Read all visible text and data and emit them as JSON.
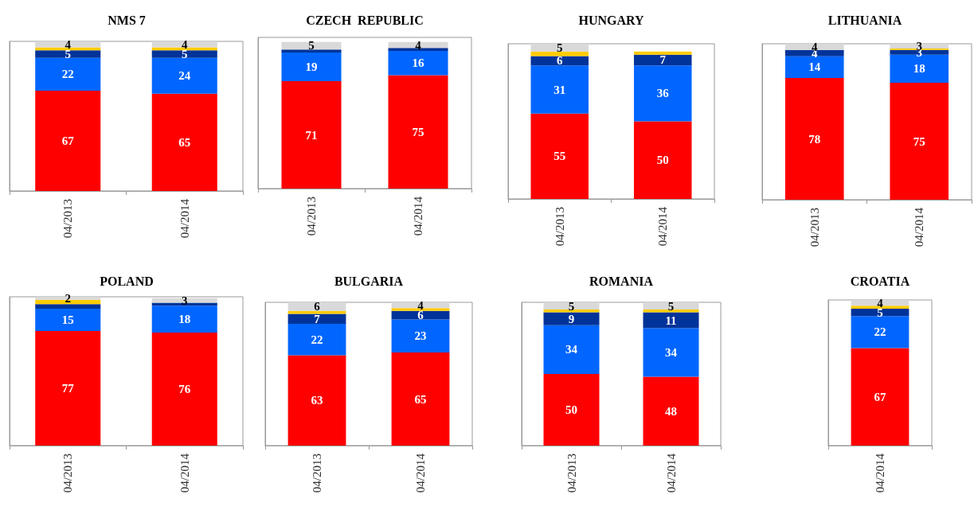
{
  "chart_data": [
    {
      "type": "bar",
      "stacked": true,
      "title": "NMS 7",
      "categories": [
        "04/2013",
        "04/2014"
      ],
      "ylim": [
        0,
        100
      ],
      "tick_labels": "x",
      "series": [
        {
          "color": "#ff0000",
          "values": [
            67,
            65
          ],
          "value_labels": [
            "67",
            "65"
          ]
        },
        {
          "color": "#0066ff",
          "values": [
            22,
            24
          ],
          "value_labels": [
            "22",
            "24"
          ]
        },
        {
          "color": "#003399",
          "values": [
            5,
            5
          ],
          "value_labels": [
            "5",
            "5"
          ]
        },
        {
          "color": "#ffcc00",
          "values": [
            2,
            2
          ],
          "value_labels": [
            null,
            null
          ]
        },
        {
          "color": "#d9d9d9",
          "values": [
            4,
            4
          ],
          "value_labels": [
            "4",
            "4"
          ]
        }
      ]
    },
    {
      "type": "bar",
      "stacked": true,
      "title": "CZECH  REPUBLIC",
      "categories": [
        "04/2013",
        "04/2014"
      ],
      "ylim": [
        0,
        100
      ],
      "tick_labels": "x",
      "series": [
        {
          "color": "#ff0000",
          "values": [
            71,
            75
          ],
          "value_labels": [
            "71",
            "75"
          ]
        },
        {
          "color": "#0066ff",
          "values": [
            19,
            16
          ],
          "value_labels": [
            "19",
            "16"
          ]
        },
        {
          "color": "#003399",
          "values": [
            2,
            2
          ],
          "value_labels": [
            null,
            null
          ]
        },
        {
          "color": "#ffcc00",
          "values": [
            null,
            null
          ],
          "value_labels": [
            null,
            null
          ]
        },
        {
          "color": "#d9d9d9",
          "values": [
            5,
            4
          ],
          "value_labels": [
            "5",
            "4"
          ]
        }
      ]
    },
    {
      "type": "bar",
      "stacked": true,
      "title": "HUNGARY",
      "categories": [
        "04/2013",
        "04/2014"
      ],
      "ylim": [
        0,
        100
      ],
      "tick_labels": "x",
      "series": [
        {
          "color": "#ff0000",
          "values": [
            55,
            50
          ],
          "value_labels": [
            "55",
            "50"
          ]
        },
        {
          "color": "#0066ff",
          "values": [
            31,
            36
          ],
          "value_labels": [
            "31",
            "36"
          ]
        },
        {
          "color": "#003399",
          "values": [
            6,
            7
          ],
          "value_labels": [
            "6",
            "7"
          ]
        },
        {
          "color": "#ffcc00",
          "values": [
            3,
            2
          ],
          "value_labels": [
            null,
            null
          ]
        },
        {
          "color": "#d9d9d9",
          "values": [
            5,
            null
          ],
          "value_labels": [
            "5",
            null
          ]
        }
      ]
    },
    {
      "type": "bar",
      "stacked": true,
      "title": "LITHUANIA",
      "categories": [
        "04/2013",
        "04/2014"
      ],
      "ylim": [
        0,
        100
      ],
      "tick_labels": "x",
      "series": [
        {
          "color": "#ff0000",
          "values": [
            78,
            75
          ],
          "value_labels": [
            "78",
            "75"
          ]
        },
        {
          "color": "#0066ff",
          "values": [
            14,
            18
          ],
          "value_labels": [
            "14",
            "18"
          ]
        },
        {
          "color": "#003399",
          "values": [
            4,
            3
          ],
          "value_labels": [
            "4",
            "3"
          ]
        },
        {
          "color": "#ffcc00",
          "values": [
            null,
            1
          ],
          "value_labels": [
            null,
            null
          ]
        },
        {
          "color": "#d9d9d9",
          "values": [
            4,
            3
          ],
          "value_labels": [
            "4",
            "3"
          ]
        }
      ]
    },
    {
      "type": "bar",
      "stacked": true,
      "title": "POLAND",
      "categories": [
        "04/2013",
        "04/2014"
      ],
      "ylim": [
        0,
        100
      ],
      "tick_labels": "x",
      "series": [
        {
          "color": "#ff0000",
          "values": [
            77,
            76
          ],
          "value_labels": [
            "77",
            "76"
          ]
        },
        {
          "color": "#0066ff",
          "values": [
            15,
            18
          ],
          "value_labels": [
            "15",
            "18"
          ]
        },
        {
          "color": "#003399",
          "values": [
            3,
            2
          ],
          "value_labels": [
            null,
            null
          ]
        },
        {
          "color": "#ffcc00",
          "values": [
            3,
            null
          ],
          "value_labels": [
            null,
            null
          ]
        },
        {
          "color": "#d9d9d9",
          "values": [
            2,
            3
          ],
          "value_labels": [
            "2",
            "3"
          ]
        }
      ]
    },
    {
      "type": "bar",
      "stacked": true,
      "title": "BULGARIA",
      "categories": [
        "04/2013",
        "04/2014"
      ],
      "ylim": [
        0,
        100
      ],
      "tick_labels": "x",
      "series": [
        {
          "color": "#ff0000",
          "values": [
            63,
            65
          ],
          "value_labels": [
            "63",
            "65"
          ]
        },
        {
          "color": "#0066ff",
          "values": [
            22,
            23
          ],
          "value_labels": [
            "22",
            "23"
          ]
        },
        {
          "color": "#003399",
          "values": [
            7,
            6
          ],
          "value_labels": [
            "7",
            "6"
          ]
        },
        {
          "color": "#ffcc00",
          "values": [
            2,
            2
          ],
          "value_labels": [
            null,
            null
          ]
        },
        {
          "color": "#d9d9d9",
          "values": [
            6,
            4
          ],
          "value_labels": [
            "6",
            "4"
          ]
        }
      ]
    },
    {
      "type": "bar",
      "stacked": true,
      "title": "ROMANIA",
      "categories": [
        "04/2013",
        "04/2014"
      ],
      "ylim": [
        0,
        100
      ],
      "tick_labels": "x",
      "series": [
        {
          "color": "#ff0000",
          "values": [
            50,
            48
          ],
          "value_labels": [
            "50",
            "48"
          ]
        },
        {
          "color": "#0066ff",
          "values": [
            34,
            34
          ],
          "value_labels": [
            "34",
            "34"
          ]
        },
        {
          "color": "#003399",
          "values": [
            9,
            11
          ],
          "value_labels": [
            "9",
            "11"
          ]
        },
        {
          "color": "#ffcc00",
          "values": [
            2,
            2
          ],
          "value_labels": [
            null,
            null
          ]
        },
        {
          "color": "#d9d9d9",
          "values": [
            5,
            5
          ],
          "value_labels": [
            "5",
            "5"
          ]
        }
      ]
    },
    {
      "type": "bar",
      "stacked": true,
      "title": "CROATIA",
      "categories": [
        "04/2014"
      ],
      "ylim": [
        0,
        100
      ],
      "tick_labels": "x",
      "series": [
        {
          "color": "#ff0000",
          "values": [
            67
          ],
          "value_labels": [
            "67"
          ]
        },
        {
          "color": "#0066ff",
          "values": [
            22
          ],
          "value_labels": [
            "22"
          ]
        },
        {
          "color": "#003399",
          "values": [
            5
          ],
          "value_labels": [
            "5"
          ]
        },
        {
          "color": "#ffcc00",
          "values": [
            2
          ],
          "value_labels": [
            null
          ]
        },
        {
          "color": "#d9d9d9",
          "values": [
            4
          ],
          "value_labels": [
            "4"
          ]
        }
      ]
    }
  ]
}
